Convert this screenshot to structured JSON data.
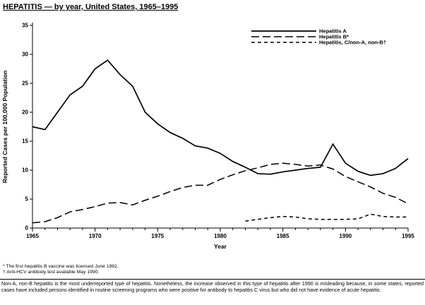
{
  "page": {
    "title": "HEPATITIS — by year, United States, 1965–1995",
    "footnotes": [
      "* The first hepatitis B vaccine was licensed June 1982.",
      "† Anti-HCV antibody test available May 1990."
    ],
    "note": "Non-A, non-B hepatitis is the most underreported type of hepatitis. Nonetheless, the increase observed in this type of hepatitis after 1990 is misleading because, in some states, reported cases have included persons identified in routine screening programs who were positive for antibody to hepatitis C virus but who did not have evidence of acute hepatitis."
  },
  "chart_data": {
    "type": "line",
    "title": "HEPATITIS — by year, United States, 1965–1995",
    "xlabel": "Year",
    "ylabel": "Reported Cases per 100,000 Population",
    "xlim": [
      1965,
      1995
    ],
    "ylim": [
      0,
      35
    ],
    "x_major_ticks": [
      1965,
      1970,
      1975,
      1980,
      1985,
      1990,
      1995
    ],
    "x_minor_tick_step": 1,
    "y_ticks": [
      0,
      5,
      10,
      15,
      20,
      25,
      30,
      35
    ],
    "grid": false,
    "legend_position": "top-right-inside",
    "line_color": "#000000",
    "series": [
      {
        "name": "Hepatitis A",
        "line_style": "solid",
        "x": [
          1965,
          1966,
          1967,
          1968,
          1969,
          1970,
          1971,
          1972,
          1973,
          1974,
          1975,
          1976,
          1977,
          1978,
          1979,
          1980,
          1981,
          1982,
          1983,
          1984,
          1985,
          1986,
          1987,
          1988,
          1989,
          1990,
          1991,
          1992,
          1993,
          1994,
          1995
        ],
        "values": [
          17.5,
          17.0,
          20.0,
          23.0,
          24.5,
          27.5,
          29.0,
          26.5,
          24.5,
          20.0,
          18.0,
          16.5,
          15.5,
          14.2,
          13.8,
          12.9,
          11.5,
          10.5,
          9.4,
          9.3,
          9.7,
          10.0,
          10.3,
          10.5,
          14.5,
          11.2,
          9.8,
          9.1,
          9.4,
          10.3,
          12.0
        ]
      },
      {
        "name": "Hepatitis B*",
        "line_style": "long-dash",
        "x": [
          1965,
          1966,
          1967,
          1968,
          1969,
          1970,
          1971,
          1972,
          1973,
          1974,
          1975,
          1976,
          1977,
          1978,
          1979,
          1980,
          1981,
          1982,
          1983,
          1984,
          1985,
          1986,
          1987,
          1988,
          1989,
          1990,
          1991,
          1992,
          1993,
          1994,
          1995
        ],
        "values": [
          0.9,
          1.1,
          1.8,
          2.8,
          3.2,
          3.7,
          4.3,
          4.4,
          4.0,
          4.8,
          5.5,
          6.3,
          7.0,
          7.4,
          7.4,
          8.4,
          9.2,
          9.9,
          10.4,
          11.0,
          11.2,
          11.0,
          10.7,
          10.9,
          10.2,
          8.9,
          8.0,
          7.1,
          6.0,
          5.3,
          4.2
        ]
      },
      {
        "name": "Hepatitis, C/non-A, non-B†",
        "line_style": "dash",
        "x": [
          1982,
          1983,
          1984,
          1985,
          1986,
          1987,
          1988,
          1989,
          1990,
          1991,
          1992,
          1993,
          1994,
          1995
        ],
        "values": [
          1.2,
          1.5,
          1.8,
          2.0,
          1.9,
          1.6,
          1.5,
          1.5,
          1.5,
          1.6,
          2.4,
          2.0,
          1.9,
          1.9
        ]
      }
    ]
  }
}
